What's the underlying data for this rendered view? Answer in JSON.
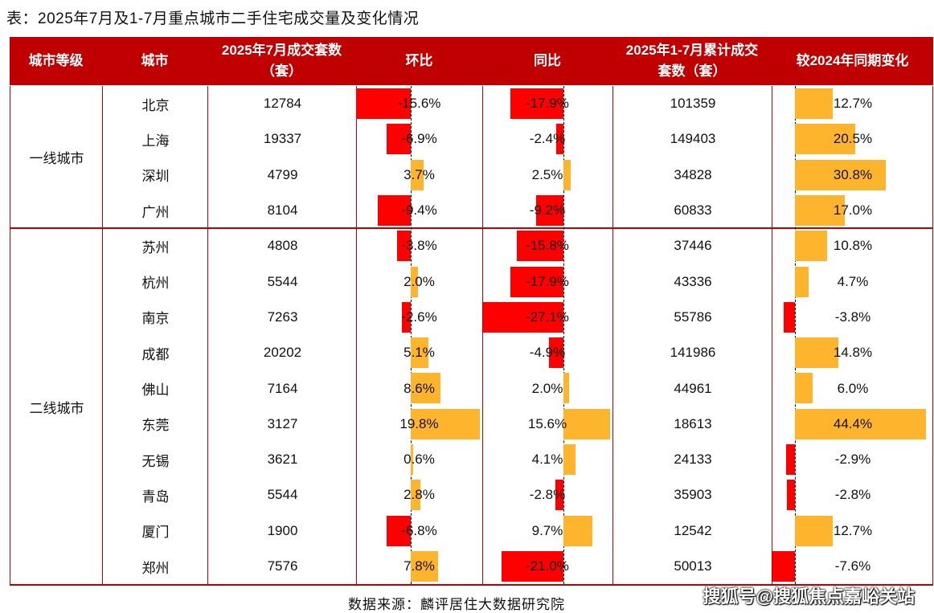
{
  "title": "表：2025年7月及1-7月重点城市二手住宅成交量及变化情况",
  "headers": [
    "城市等级",
    "城市",
    "2025年7月成交套数（套）",
    "环比",
    "同比",
    "2025年1-7月累计成交套数（套）",
    "较2024年同期变化"
  ],
  "tiers": [
    "一线城市",
    "二线城市"
  ],
  "colors": {
    "header": "#c00000",
    "negative": "#ff0000",
    "positive": "#ffb42d",
    "border": "#c00000"
  },
  "chart_data": {
    "type": "table",
    "columns": [
      "城市等级",
      "城市",
      "2025年7月成交套数（套）",
      "环比",
      "同比",
      "2025年1-7月累计成交套数（套）",
      "较2024年同期变化"
    ],
    "rows": [
      {
        "tier": "一线城市",
        "city": "北京",
        "jul": "12784",
        "mom": -15.6,
        "yoy": -17.9,
        "ytd": "101359",
        "ytd_chg": 12.7
      },
      {
        "tier": "一线城市",
        "city": "上海",
        "jul": "19337",
        "mom": -6.9,
        "yoy": -2.4,
        "ytd": "149403",
        "ytd_chg": 20.5
      },
      {
        "tier": "一线城市",
        "city": "深圳",
        "jul": "4799",
        "mom": 3.7,
        "yoy": 2.5,
        "ytd": "34828",
        "ytd_chg": 30.8
      },
      {
        "tier": "一线城市",
        "city": "广州",
        "jul": "8104",
        "mom": -9.4,
        "yoy": -9.2,
        "ytd": "60833",
        "ytd_chg": 17.0
      },
      {
        "tier": "二线城市",
        "city": "苏州",
        "jul": "4808",
        "mom": -3.8,
        "yoy": -15.8,
        "ytd": "37446",
        "ytd_chg": 10.8
      },
      {
        "tier": "二线城市",
        "city": "杭州",
        "jul": "5544",
        "mom": 2.0,
        "yoy": -17.9,
        "ytd": "43336",
        "ytd_chg": 4.7
      },
      {
        "tier": "二线城市",
        "city": "南京",
        "jul": "7263",
        "mom": -2.6,
        "yoy": -27.1,
        "ytd": "55786",
        "ytd_chg": -3.8
      },
      {
        "tier": "二线城市",
        "city": "成都",
        "jul": "20202",
        "mom": 5.1,
        "yoy": -4.9,
        "ytd": "141986",
        "ytd_chg": 14.8
      },
      {
        "tier": "二线城市",
        "city": "佛山",
        "jul": "7164",
        "mom": 8.6,
        "yoy": 2.0,
        "ytd": "44961",
        "ytd_chg": 6.0
      },
      {
        "tier": "二线城市",
        "city": "东莞",
        "jul": "3127",
        "mom": 19.8,
        "yoy": 15.6,
        "ytd": "18613",
        "ytd_chg": 44.4
      },
      {
        "tier": "二线城市",
        "city": "无锡",
        "jul": "3621",
        "mom": 0.6,
        "yoy": 4.1,
        "ytd": "24133",
        "ytd_chg": -2.9
      },
      {
        "tier": "二线城市",
        "city": "青岛",
        "jul": "5544",
        "mom": 2.8,
        "yoy": -2.8,
        "ytd": "35903",
        "ytd_chg": -2.8
      },
      {
        "tier": "二线城市",
        "city": "厦门",
        "jul": "1900",
        "mom": -6.8,
        "yoy": 9.7,
        "ytd": "12542",
        "ytd_chg": 12.7
      },
      {
        "tier": "二线城市",
        "city": "郑州",
        "jul": "7576",
        "mom": 7.8,
        "yoy": -21.0,
        "ytd": "50013",
        "ytd_chg": -7.6
      }
    ]
  },
  "source": "数据来源：麟评居住大数据研究院",
  "watermark": "搜狐号@搜狐焦点嘉峪关站"
}
